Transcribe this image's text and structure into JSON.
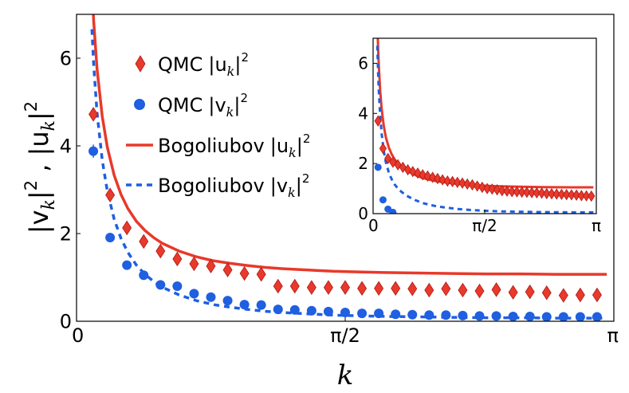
{
  "chart_data": [
    {
      "type": "scatter",
      "panel": "main",
      "xlabel": "k",
      "ylabel": "|v_k|², |u_k|²",
      "xlim": [
        0,
        3.1416
      ],
      "ylim": [
        0,
        7
      ],
      "xticks": [
        {
          "value": 0,
          "label": "0"
        },
        {
          "value": 1.5708,
          "label": "π/2"
        },
        {
          "value": 3.1416,
          "label": "π"
        }
      ],
      "yticks": [
        {
          "value": 0,
          "label": "0"
        },
        {
          "value": 2,
          "label": "2"
        },
        {
          "value": 4,
          "label": "4"
        },
        {
          "value": 6,
          "label": "6"
        }
      ],
      "legend": [
        {
          "series": "qmc_u",
          "label": "QMC |u_k|²",
          "prefix": "QMC",
          "sym": "u"
        },
        {
          "series": "qmc_v",
          "label": "QMC |v_k|²",
          "prefix": "QMC",
          "sym": "v"
        },
        {
          "series": "bog_u",
          "label": "Bogoliubov |u_k|²",
          "prefix": "Bogoliubov",
          "sym": "u"
        },
        {
          "series": "bog_v",
          "label": "Bogoliubov |v_k|²",
          "prefix": "Bogoliubov",
          "sym": "v"
        }
      ],
      "series": {
        "qmc_u": {
          "name": "QMC |u_k|²",
          "marker": "diamond",
          "color": "#e8392a",
          "x": [
            0.0982,
            0.1963,
            0.2945,
            0.3927,
            0.4909,
            0.589,
            0.6872,
            0.7854,
            0.8836,
            0.9817,
            1.0799,
            1.1781,
            1.2763,
            1.3744,
            1.4726,
            1.5708,
            1.669,
            1.7671,
            1.8653,
            1.9635,
            2.0617,
            2.1598,
            2.258,
            2.3562,
            2.4544,
            2.5525,
            2.6507,
            2.7489,
            2.8471,
            2.9452,
            3.0434
          ],
          "y": [
            4.72,
            2.88,
            2.13,
            1.82,
            1.6,
            1.42,
            1.31,
            1.26,
            1.17,
            1.09,
            1.07,
            0.8,
            0.8,
            0.77,
            0.77,
            0.77,
            0.75,
            0.75,
            0.75,
            0.74,
            0.71,
            0.74,
            0.71,
            0.69,
            0.72,
            0.66,
            0.67,
            0.65,
            0.59,
            0.6,
            0.6
          ],
          "err": [
            0.12,
            0.06,
            0,
            0,
            0,
            0,
            0,
            0,
            0,
            0,
            0,
            0,
            0,
            0,
            0,
            0,
            0,
            0,
            0,
            0,
            0,
            0,
            0,
            0,
            0,
            0,
            0,
            0,
            0,
            0,
            0
          ]
        },
        "qmc_v": {
          "name": "QMC |v_k|²",
          "marker": "circle",
          "color": "#1f5fe0",
          "x": [
            0.0982,
            0.1963,
            0.2945,
            0.3927,
            0.4909,
            0.589,
            0.6872,
            0.7854,
            0.8836,
            0.9817,
            1.0799,
            1.1781,
            1.2763,
            1.3744,
            1.4726,
            1.5708,
            1.669,
            1.7671,
            1.8653,
            1.9635,
            2.0617,
            2.1598,
            2.258,
            2.3562,
            2.4544,
            2.5525,
            2.6507,
            2.7489,
            2.8471,
            2.9452,
            3.0434
          ],
          "y": [
            3.88,
            1.91,
            1.28,
            1.05,
            0.83,
            0.8,
            0.63,
            0.55,
            0.47,
            0.38,
            0.37,
            0.27,
            0.26,
            0.24,
            0.22,
            0.2,
            0.18,
            0.18,
            0.16,
            0.15,
            0.14,
            0.14,
            0.13,
            0.12,
            0.12,
            0.11,
            0.11,
            0.1,
            0.1,
            0.1,
            0.1
          ],
          "err": [
            0.15,
            0,
            0,
            0,
            0,
            0,
            0,
            0,
            0,
            0,
            0,
            0,
            0,
            0,
            0,
            0,
            0,
            0,
            0,
            0,
            0,
            0,
            0,
            0,
            0,
            0,
            0,
            0,
            0,
            0,
            0
          ]
        },
        "bog_u": {
          "name": "Bogoliubov |u_k|²",
          "type": "line",
          "style": "solid",
          "color": "#e8392a",
          "x": [
            0.09,
            0.1,
            0.12,
            0.15,
            0.18,
            0.22,
            0.26,
            0.3,
            0.35,
            0.4,
            0.45,
            0.5,
            0.6,
            0.7,
            0.8,
            0.9,
            1.0,
            1.1,
            1.2,
            1.3,
            1.4,
            1.5,
            1.6,
            1.8,
            2.0,
            2.2,
            2.4,
            2.6,
            2.8,
            3.0,
            3.1
          ],
          "y": [
            7.66,
            6.85,
            5.76,
            4.68,
            3.97,
            3.33,
            2.89,
            2.57,
            2.28,
            2.07,
            1.91,
            1.78,
            1.6,
            1.47,
            1.38,
            1.32,
            1.27,
            1.23,
            1.2,
            1.18,
            1.16,
            1.14,
            1.13,
            1.11,
            1.1,
            1.09,
            1.08,
            1.08,
            1.07,
            1.07,
            1.07
          ]
        },
        "bog_v": {
          "name": "Bogoliubov |v_k|²",
          "type": "line",
          "style": "dashed",
          "color": "#1f5fe0",
          "x": [
            0.09,
            0.1,
            0.12,
            0.15,
            0.18,
            0.22,
            0.26,
            0.3,
            0.35,
            0.4,
            0.45,
            0.5,
            0.6,
            0.7,
            0.8,
            0.9,
            1.0,
            1.1,
            1.2,
            1.3,
            1.4,
            1.5,
            1.6,
            1.8,
            2.0,
            2.2,
            2.4,
            2.6,
            2.8,
            3.0,
            3.1
          ],
          "y": [
            6.66,
            5.85,
            4.76,
            3.68,
            2.97,
            2.33,
            1.89,
            1.57,
            1.28,
            1.07,
            0.91,
            0.78,
            0.6,
            0.47,
            0.38,
            0.32,
            0.27,
            0.23,
            0.2,
            0.18,
            0.16,
            0.14,
            0.13,
            0.11,
            0.1,
            0.09,
            0.08,
            0.08,
            0.07,
            0.07,
            0.07
          ]
        }
      }
    },
    {
      "type": "scatter",
      "panel": "inset",
      "xlim": [
        0,
        3.1416
      ],
      "ylim": [
        0,
        7
      ],
      "xticks": [
        {
          "value": 0,
          "label": "0"
        },
        {
          "value": 1.5708,
          "label": "π/2"
        },
        {
          "value": 3.1416,
          "label": "π"
        }
      ],
      "yticks": [
        {
          "value": 0,
          "label": "0"
        },
        {
          "value": 2,
          "label": "2"
        },
        {
          "value": 4,
          "label": "4"
        },
        {
          "value": 6,
          "label": "6"
        }
      ],
      "series": {
        "qmc_u": {
          "name": "QMC |u_k|²",
          "marker": "diamond",
          "color": "#e8392a",
          "x": [
            0.0698,
            0.1396,
            0.2094,
            0.2793,
            0.3491,
            0.4189,
            0.4887,
            0.5585,
            0.6283,
            0.6981,
            0.7679,
            0.8378,
            0.9076,
            0.9774,
            1.0472,
            1.117,
            1.1868,
            1.2566,
            1.3265,
            1.3963,
            1.4661,
            1.5359,
            1.6057,
            1.6755,
            1.7453,
            1.8151,
            1.885,
            1.9548,
            2.0246,
            2.0944,
            2.1642,
            2.234,
            2.3038,
            2.3736,
            2.4435,
            2.5133,
            2.5831,
            2.6529,
            2.7227,
            2.7925,
            2.8623,
            2.9322,
            3.002,
            3.0718
          ],
          "y": [
            3.7,
            2.6,
            2.2,
            2.05,
            1.95,
            1.85,
            1.75,
            1.68,
            1.62,
            1.55,
            1.5,
            1.45,
            1.4,
            1.35,
            1.3,
            1.28,
            1.25,
            1.22,
            1.18,
            1.15,
            1.1,
            1.05,
            1.0,
            0.98,
            0.95,
            0.92,
            0.9,
            0.88,
            0.87,
            0.86,
            0.85,
            0.84,
            0.83,
            0.82,
            0.8,
            0.79,
            0.78,
            0.77,
            0.76,
            0.75,
            0.74,
            0.72,
            0.71,
            0.7
          ]
        },
        "qmc_v": {
          "name": "QMC |v_k|²",
          "marker": "circle",
          "color": "#1f5fe0",
          "x": [
            0.0698,
            0.1396,
            0.2094,
            0.2793
          ],
          "y": [
            1.85,
            0.55,
            0.18,
            0.05
          ]
        },
        "bog_u": {
          "name": "Bogoliubov |u_k|²",
          "type": "line",
          "style": "solid",
          "color": "#e8392a",
          "x": [
            0.06,
            0.07,
            0.08,
            0.1,
            0.12,
            0.15,
            0.18,
            0.22,
            0.26,
            0.3,
            0.35,
            0.4,
            0.45,
            0.5,
            0.6,
            0.7,
            0.8,
            0.9,
            1.0,
            1.2,
            1.4,
            1.6,
            1.8,
            2.0,
            2.4,
            2.8,
            3.1
          ],
          "y": [
            7.7,
            6.7,
            5.95,
            4.9,
            4.2,
            3.5,
            3.05,
            2.65,
            2.38,
            2.18,
            2.0,
            1.87,
            1.76,
            1.67,
            1.53,
            1.42,
            1.35,
            1.29,
            1.25,
            1.18,
            1.14,
            1.11,
            1.09,
            1.08,
            1.06,
            1.05,
            1.05
          ]
        },
        "bog_v": {
          "name": "Bogoliubov |v_k|²",
          "type": "line",
          "style": "dashed",
          "color": "#1f5fe0",
          "x": [
            0.06,
            0.07,
            0.08,
            0.1,
            0.12,
            0.15,
            0.18,
            0.22,
            0.26,
            0.3,
            0.35,
            0.4,
            0.45,
            0.5,
            0.6,
            0.7,
            0.8,
            0.9,
            1.0,
            1.2,
            1.4,
            1.6,
            1.8,
            2.0,
            2.4,
            2.8,
            3.1
          ],
          "y": [
            6.7,
            5.7,
            4.95,
            3.9,
            3.2,
            2.5,
            2.05,
            1.65,
            1.38,
            1.18,
            1.0,
            0.87,
            0.76,
            0.67,
            0.53,
            0.42,
            0.35,
            0.29,
            0.25,
            0.18,
            0.14,
            0.11,
            0.09,
            0.08,
            0.06,
            0.05,
            0.05
          ]
        }
      }
    }
  ]
}
